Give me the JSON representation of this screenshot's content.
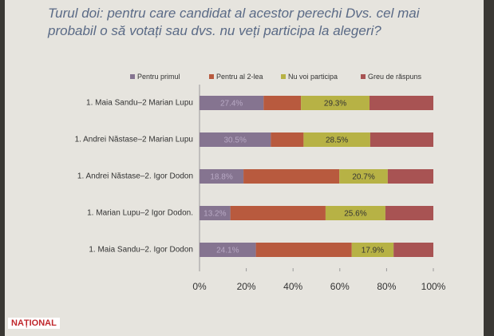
{
  "chart_data": {
    "type": "stacked-barh",
    "title": "Turul doi: pentru care candidat al acestor perechi Dvs. cel mai probabil o să votați sau dvs. nu veți participa la alegeri?",
    "categories": [
      "1. Maia Sandu–2 Marian Lupu",
      "1. Andrei Năstase–2 Marian Lupu",
      "1. Andrei Năstase–2. Igor Dodon",
      "1. Marian Lupu–2 Igor Dodon.",
      "1. Maia Sandu–2. Igor Dodon"
    ],
    "series": [
      {
        "name": "Pentru primul",
        "color": "#857490",
        "values": [
          27.4,
          30.5,
          18.8,
          13.2,
          24.1
        ],
        "value_labels": [
          "27.4%",
          "30.5%",
          "18.8%",
          "13.2%",
          "24.1%"
        ]
      },
      {
        "name": "Pentru al 2-lea",
        "color": "#b85a3e",
        "values": [
          16.0,
          14.0,
          41.0,
          40.7,
          41.0
        ]
      },
      {
        "name": "Nu voi participa",
        "color": "#b7b245",
        "values": [
          29.3,
          28.5,
          20.7,
          25.6,
          17.9
        ],
        "value_labels": [
          "29.3%",
          "28.5%",
          "20.7%",
          "25.6%",
          "17.9%"
        ]
      },
      {
        "name": "Greu de răspuns",
        "color": "#a85353",
        "values": [
          27.3,
          27.0,
          19.5,
          20.5,
          17.0
        ]
      }
    ],
    "xlim": [
      0,
      100
    ],
    "xticks": [
      {
        "value": 0,
        "label": "0%"
      },
      {
        "value": 20,
        "label": "20%"
      },
      {
        "value": 40,
        "label": "40%"
      },
      {
        "value": 60,
        "label": "60%"
      },
      {
        "value": 80,
        "label": "80%"
      },
      {
        "value": 100,
        "label": "100%"
      }
    ],
    "legend": "top",
    "watermark": "NAȚIONAL"
  }
}
